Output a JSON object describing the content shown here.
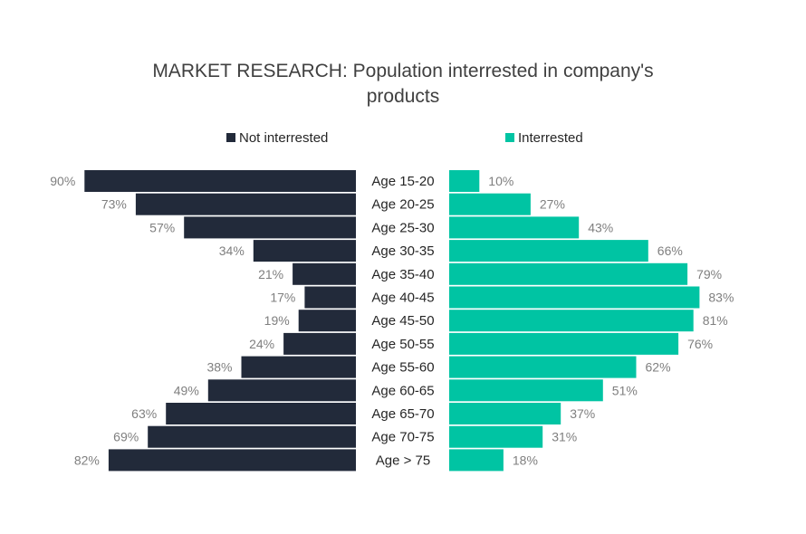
{
  "chart_data": {
    "type": "bar",
    "orientation": "horizontal",
    "layout": "diverging",
    "title": "MARKET RESEARCH: Population interrested in company's products",
    "title_lines": [
      "MARKET RESEARCH: Population interrested in company's",
      "products"
    ],
    "legend_position": "top",
    "grid": false,
    "categories": [
      "Age 15-20",
      "Age 20-25",
      "Age 25-30",
      "Age 30-35",
      "Age 35-40",
      "Age 40-45",
      "Age 45-50",
      "Age 50-55",
      "Age 55-60",
      "Age 60-65",
      "Age 65-70",
      "Age 70-75",
      "Age > 75"
    ],
    "series": [
      {
        "name": "Not interrested",
        "color": "#222a3a",
        "side": "left",
        "values": [
          90,
          73,
          57,
          34,
          21,
          17,
          19,
          24,
          38,
          49,
          63,
          69,
          82
        ],
        "labels": [
          "90%",
          "73%",
          "57%",
          "34%",
          "21%",
          "17%",
          "19%",
          "24%",
          "38%",
          "49%",
          "63%",
          "69%",
          "82%"
        ]
      },
      {
        "name": "Interrested",
        "color": "#00c4a3",
        "side": "right",
        "values": [
          10,
          27,
          43,
          66,
          79,
          83,
          81,
          76,
          62,
          51,
          37,
          31,
          18
        ],
        "labels": [
          "10%",
          "27%",
          "43%",
          "66%",
          "79%",
          "83%",
          "81%",
          "76%",
          "62%",
          "51%",
          "37%",
          "31%",
          "18%"
        ]
      }
    ],
    "xlim": [
      0,
      100
    ],
    "unit": "%"
  }
}
